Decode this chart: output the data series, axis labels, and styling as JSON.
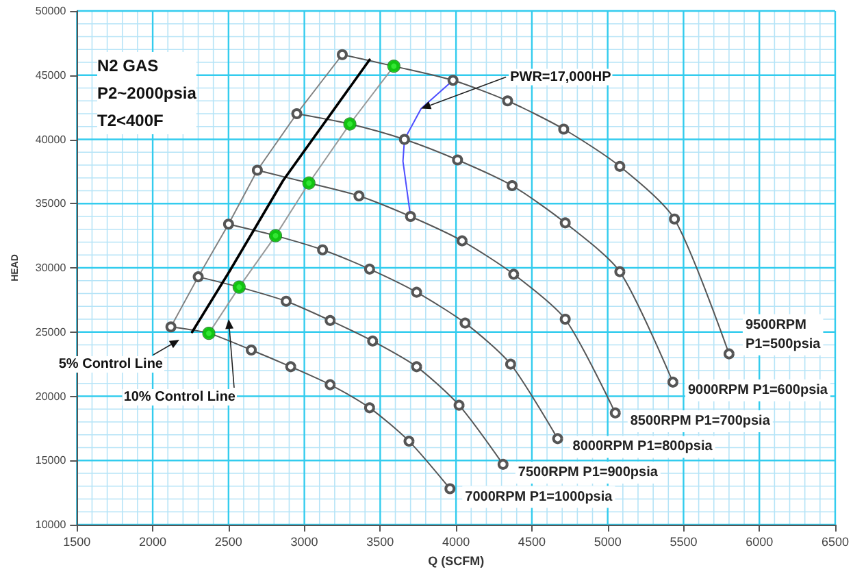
{
  "chart_data": {
    "type": "line",
    "xlabel": "Q (SCFM)",
    "ylabel": "HEAD",
    "xlim": [
      1500,
      6500
    ],
    "ylim": [
      10000,
      50000
    ],
    "xticks": [
      1500,
      {
        "value": 1600,
        "label": null
      },
      {
        "value": 1700,
        "label": null
      },
      {
        "value": 1800,
        "label": null
      },
      {
        "value": 1900,
        "label": null
      },
      2000,
      {
        "value": 2100,
        "label": null
      },
      {
        "value": 2200,
        "label": null
      },
      {
        "value": 2300,
        "label": null
      },
      {
        "value": 2400,
        "label": null
      },
      2500,
      {
        "value": 2600,
        "label": null
      },
      {
        "value": 2700,
        "label": null
      },
      {
        "value": 2800,
        "label": null
      },
      {
        "value": 2900,
        "label": null
      },
      3000,
      {
        "value": 3100,
        "label": null
      },
      {
        "value": 3200,
        "label": null
      },
      {
        "value": 3300,
        "label": null
      },
      {
        "value": 3400,
        "label": null
      },
      3500,
      {
        "value": 3600,
        "label": null
      },
      {
        "value": 3700,
        "label": null
      },
      {
        "value": 3800,
        "label": null
      },
      {
        "value": 3900,
        "label": null
      },
      4000,
      {
        "value": 4100,
        "label": null
      },
      {
        "value": 4200,
        "label": null
      },
      {
        "value": 4300,
        "label": null
      },
      {
        "value": 4400,
        "label": null
      },
      4500,
      {
        "value": 4600,
        "label": null
      },
      {
        "value": 4700,
        "label": null
      },
      {
        "value": 4800,
        "label": null
      },
      {
        "value": 4900,
        "label": null
      },
      5000,
      {
        "value": 5100,
        "label": null
      },
      {
        "value": 5200,
        "label": null
      },
      {
        "value": 5300,
        "label": null
      },
      {
        "value": 5400,
        "label": null
      },
      5500,
      {
        "value": 5600,
        "label": null
      },
      {
        "value": 5700,
        "label": null
      },
      {
        "value": 5800,
        "label": null
      },
      {
        "value": 5900,
        "label": null
      },
      6000,
      {
        "value": 6100,
        "label": null
      },
      {
        "value": 6200,
        "label": null
      },
      {
        "value": 6300,
        "label": null
      },
      {
        "value": 6400,
        "label": null
      },
      6500
    ],
    "yticks": [
      10000,
      {
        "value": 11000,
        "label": null
      },
      {
        "value": 12000,
        "label": null
      },
      {
        "value": 13000,
        "label": null
      },
      {
        "value": 14000,
        "label": null
      },
      15000,
      {
        "value": 16000,
        "label": null
      },
      {
        "value": 17000,
        "label": null
      },
      {
        "value": 18000,
        "label": null
      },
      {
        "value": 19000,
        "label": null
      },
      20000,
      {
        "value": 21000,
        "label": null
      },
      {
        "value": 22000,
        "label": null
      },
      {
        "value": 23000,
        "label": null
      },
      {
        "value": 24000,
        "label": null
      },
      25000,
      {
        "value": 26000,
        "label": null
      },
      {
        "value": 27000,
        "label": null
      },
      {
        "value": 28000,
        "label": null
      },
      {
        "value": 29000,
        "label": null
      },
      30000,
      {
        "value": 31000,
        "label": null
      },
      {
        "value": 32000,
        "label": null
      },
      {
        "value": 33000,
        "label": null
      },
      {
        "value": 34000,
        "label": null
      },
      35000,
      {
        "value": 36000,
        "label": null
      },
      {
        "value": 37000,
        "label": null
      },
      {
        "value": 38000,
        "label": null
      },
      {
        "value": 39000,
        "label": null
      },
      40000,
      {
        "value": 41000,
        "label": null
      },
      {
        "value": 42000,
        "label": null
      },
      {
        "value": 43000,
        "label": null
      },
      {
        "value": 44000,
        "label": null
      },
      45000,
      {
        "value": 46000,
        "label": null
      },
      {
        "value": 47000,
        "label": null
      },
      {
        "value": 48000,
        "label": null
      },
      {
        "value": 49000,
        "label": null
      },
      50000
    ],
    "grid": true,
    "legend": false,
    "marker": "circle",
    "series": [
      {
        "name": "7000RPM P1=1000psia",
        "color": "#555555",
        "x": [
          2120,
          2370,
          2650,
          2910,
          3170,
          3430,
          3690,
          3960
        ],
        "values": [
          25400,
          24900,
          23600,
          22300,
          20900,
          19100,
          16500,
          12800
        ]
      },
      {
        "name": "7500RPM P1=900psia",
        "color": "#555555",
        "x": [
          2300,
          2570,
          2880,
          3170,
          3450,
          3740,
          4020,
          4310
        ],
        "values": [
          29300,
          28500,
          27400,
          25900,
          24300,
          22300,
          19300,
          14700
        ]
      },
      {
        "name": "8000RPM P1=800psia",
        "color": "#555555",
        "x": [
          2500,
          2810,
          3120,
          3430,
          3740,
          4060,
          4360,
          4670
        ],
        "values": [
          33400,
          32500,
          31400,
          29900,
          28100,
          25700,
          22500,
          16700
        ]
      },
      {
        "name": "8500RPM P1=700psia",
        "color": "#555555",
        "x": [
          2690,
          3030,
          3360,
          3700,
          4040,
          4380,
          4720,
          5050
        ],
        "values": [
          37600,
          36600,
          35600,
          34000,
          32100,
          29500,
          26000,
          18700
        ]
      },
      {
        "name": "9000RPM P1=600psia",
        "color": "#555555",
        "x": [
          2950,
          3300,
          3660,
          4010,
          4370,
          4720,
          5080,
          5430
        ],
        "values": [
          42000,
          41200,
          40000,
          38400,
          36400,
          33500,
          29700,
          21100
        ]
      },
      {
        "name": "9500RPM\nP1=500psia",
        "color": "#555555",
        "x": [
          3250,
          3590,
          3980,
          4340,
          4710,
          5080,
          5440,
          5800
        ],
        "values": [
          46600,
          45700,
          44600,
          43000,
          40800,
          37900,
          33800,
          23300
        ]
      },
      {
        "color": "#808080",
        "marker": "none",
        "x": [
          2120,
          2300,
          2500,
          2690,
          2950,
          3250
        ],
        "values": [
          25400,
          29300,
          33400,
          37600,
          42000,
          46600
        ]
      },
      {
        "color": "#000000",
        "marker": "none",
        "x": [
          2260,
          2510,
          2860,
          3430
        ],
        "values": [
          25000,
          29800,
          36800,
          46200
        ]
      },
      {
        "color": "#999999",
        "marker": "none",
        "x": [
          2370,
          2570,
          2810,
          3030,
          3300,
          3590
        ],
        "values": [
          24900,
          28500,
          32500,
          36600,
          41200,
          45700
        ]
      },
      {
        "type": "scatter",
        "color": "#00e000",
        "x": [
          2370,
          2570,
          2810,
          3030,
          3300,
          3590
        ],
        "values": [
          24900,
          28500,
          32500,
          36600,
          41200,
          45700
        ]
      },
      {
        "color": "#4d4dff",
        "marker": "none",
        "x": [
          3980,
          3770,
          3660,
          3650,
          3700
        ],
        "values": [
          44600,
          42400,
          40000,
          38300,
          34000
        ]
      }
    ],
    "annotations": [
      "N2 GAS\nP2~2000psia\nT2<400F",
      {
        "text": "PWR=17,000HP",
        "x": 3770,
        "y": 42400
      },
      "5% Control Line",
      "10% Control Line"
    ]
  }
}
